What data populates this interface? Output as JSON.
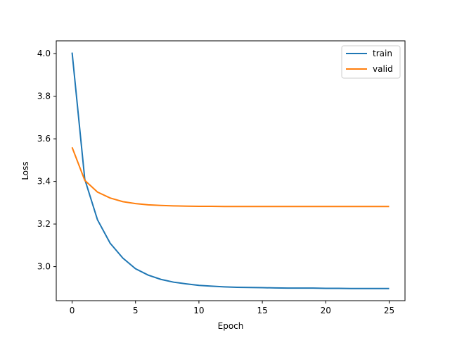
{
  "chart_data": {
    "type": "line",
    "title": "",
    "xlabel": "Epoch",
    "ylabel": "Loss",
    "xlim": [
      -1.25,
      26.25
    ],
    "ylim": [
      2.84,
      4.06
    ],
    "xticks": [
      0,
      5,
      10,
      15,
      20,
      25
    ],
    "yticks": [
      3.0,
      3.2,
      3.4,
      3.6,
      3.8,
      4.0
    ],
    "xtick_labels": [
      "0",
      "5",
      "10",
      "15",
      "20",
      "25"
    ],
    "ytick_labels": [
      "3.0",
      "3.2",
      "3.4",
      "3.6",
      "3.8",
      "4.0"
    ],
    "grid": false,
    "legend_position": "top-right",
    "x": [
      0,
      1,
      2,
      3,
      4,
      5,
      6,
      7,
      8,
      9,
      10,
      11,
      12,
      13,
      14,
      15,
      16,
      17,
      18,
      19,
      20,
      21,
      22,
      23,
      24,
      25
    ],
    "series": [
      {
        "name": "train",
        "color": "#1f77b4",
        "values": [
          4.005,
          3.41,
          3.22,
          3.11,
          3.04,
          2.99,
          2.96,
          2.94,
          2.927,
          2.919,
          2.912,
          2.908,
          2.905,
          2.903,
          2.902,
          2.901,
          2.9,
          2.899,
          2.899,
          2.899,
          2.898,
          2.898,
          2.897,
          2.897,
          2.897,
          2.897
        ]
      },
      {
        "name": "valid",
        "color": "#ff7f0e",
        "values": [
          3.56,
          3.405,
          3.35,
          3.322,
          3.305,
          3.296,
          3.29,
          3.287,
          3.285,
          3.284,
          3.283,
          3.283,
          3.282,
          3.282,
          3.282,
          3.282,
          3.282,
          3.282,
          3.282,
          3.282,
          3.282,
          3.282,
          3.282,
          3.282,
          3.282,
          3.282
        ]
      }
    ]
  }
}
